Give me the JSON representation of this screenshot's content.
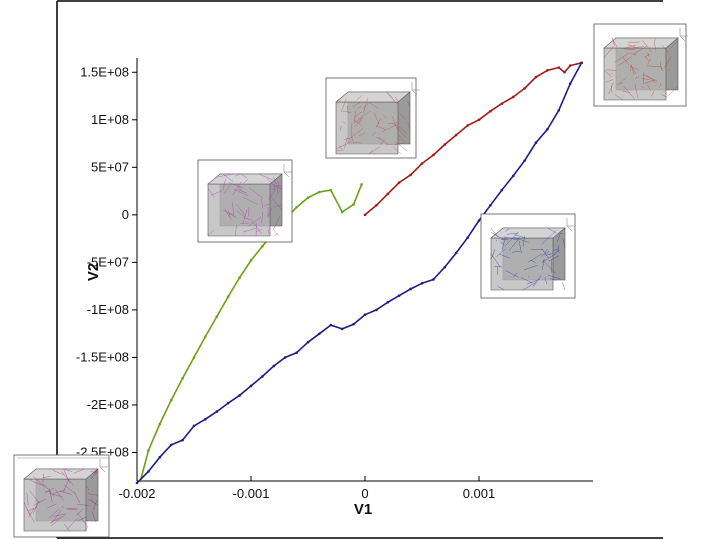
{
  "chart_data": {
    "type": "line",
    "xlabel": "V1",
    "ylabel": "V2",
    "xlim": [
      -0.002,
      0.002
    ],
    "ylim": [
      -280000000.0,
      165000000.0
    ],
    "x_ticks": [
      {
        "value": -0.002,
        "label": "-0.002"
      },
      {
        "value": -0.001,
        "label": "-0.001"
      },
      {
        "value": 0,
        "label": "0"
      },
      {
        "value": 0.001,
        "label": "0.001"
      }
    ],
    "y_ticks": [
      {
        "value": 150000000.0,
        "label": "1.5E+08"
      },
      {
        "value": 100000000.0,
        "label": "1E+08"
      },
      {
        "value": 50000000.0,
        "label": "5E+07"
      },
      {
        "value": 0,
        "label": "0"
      },
      {
        "value": -50000000.0,
        "label": "-5E+07"
      },
      {
        "value": -100000000.0,
        "label": "-1E+08"
      },
      {
        "value": -150000000.0,
        "label": "-1.5E+08"
      },
      {
        "value": -200000000.0,
        "label": "-2E+08"
      },
      {
        "value": -250000000.0,
        "label": "-2.5E+08"
      }
    ],
    "grid": false,
    "legend": "none",
    "series": [
      {
        "color": "#6aa217",
        "x": [
          -0.00197,
          -0.0019,
          -0.0018,
          -0.0017,
          -0.0016,
          -0.0015,
          -0.0014,
          -0.0013,
          -0.0012,
          -0.0011,
          -0.001,
          -0.0009,
          -0.0008,
          -0.0007,
          -0.0006,
          -0.0005,
          -0.0004,
          -0.0003,
          -0.0002,
          -0.0001,
          -3e-05
        ],
        "y": [
          -280000000.0,
          -248000000.0,
          -220000000.0,
          -195000000.0,
          -172000000.0,
          -150000000.0,
          -128000000.0,
          -107000000.0,
          -86000000.0,
          -66000000.0,
          -48000000.0,
          -33000000.0,
          -19000000.0,
          -5000000.0,
          8000000.0,
          18000000.0,
          24000000.0,
          26000000.0,
          3000000.0,
          11000000.0,
          32000000.0
        ]
      },
      {
        "color": "#a11c1c",
        "x": [
          0,
          0.0001,
          0.0002,
          0.0003,
          0.0004,
          0.0005,
          0.0006,
          0.0007,
          0.0008,
          0.0009,
          0.001,
          0.0011,
          0.0012,
          0.0013,
          0.0014,
          0.0015,
          0.0016,
          0.0017,
          0.00175,
          0.0018,
          0.0019
        ],
        "y": [
          0,
          10000000.0,
          22000000.0,
          34000000.0,
          42000000.0,
          54000000.0,
          63000000.0,
          74000000.0,
          84000000.0,
          94000000.0,
          100000000.0,
          109000000.0,
          117000000.0,
          124000000.0,
          133000000.0,
          145000000.0,
          152000000.0,
          155000000.0,
          150000000.0,
          157000000.0,
          160000000.0
        ]
      },
      {
        "color": "#1c1f86",
        "x": [
          0.0019,
          0.0018,
          0.0017,
          0.0016,
          0.0015,
          0.0014,
          0.0013,
          0.0012,
          0.0011,
          0.001,
          0.0009,
          0.0008,
          0.0007,
          0.0006,
          0.0005,
          0.0004,
          0.0003,
          0.0002,
          0.0001,
          0,
          -0.0001,
          -0.0002,
          -0.0003,
          -0.0004,
          -0.0005,
          -0.0006,
          -0.0007,
          -0.0008,
          -0.0009,
          -0.001,
          -0.0011,
          -0.0012,
          -0.0013,
          -0.0014,
          -0.0015,
          -0.0016,
          -0.0017,
          -0.0018,
          -0.0019,
          -0.002
        ],
        "y": [
          160000000.0,
          138000000.0,
          110000000.0,
          90000000.0,
          76000000.0,
          57000000.0,
          41000000.0,
          26000000.0,
          10000000.0,
          -6000000.0,
          -24000000.0,
          -40000000.0,
          -55000000.0,
          -68000000.0,
          -72000000.0,
          -78000000.0,
          -85000000.0,
          -92000000.0,
          -100000000.0,
          -105000000.0,
          -115000000.0,
          -120000000.0,
          -116000000.0,
          -125000000.0,
          -134000000.0,
          -145000000.0,
          -150000000.0,
          -159000000.0,
          -170000000.0,
          -180000000.0,
          -190000000.0,
          -198000000.0,
          -207000000.0,
          -215000000.0,
          -222000000.0,
          -237000000.0,
          -242000000.0,
          -255000000.0,
          -270000000.0,
          -282000000.0
        ]
      }
    ]
  },
  "insets": [
    {
      "id": "green-start",
      "tint": "#9b2a88"
    },
    {
      "id": "green-mid",
      "tint": "#a23aa9"
    },
    {
      "id": "red-start",
      "tint": "#b34a4a"
    },
    {
      "id": "red-end",
      "tint": "#c0392b"
    },
    {
      "id": "blue-mid",
      "tint": "#2830a8"
    }
  ]
}
